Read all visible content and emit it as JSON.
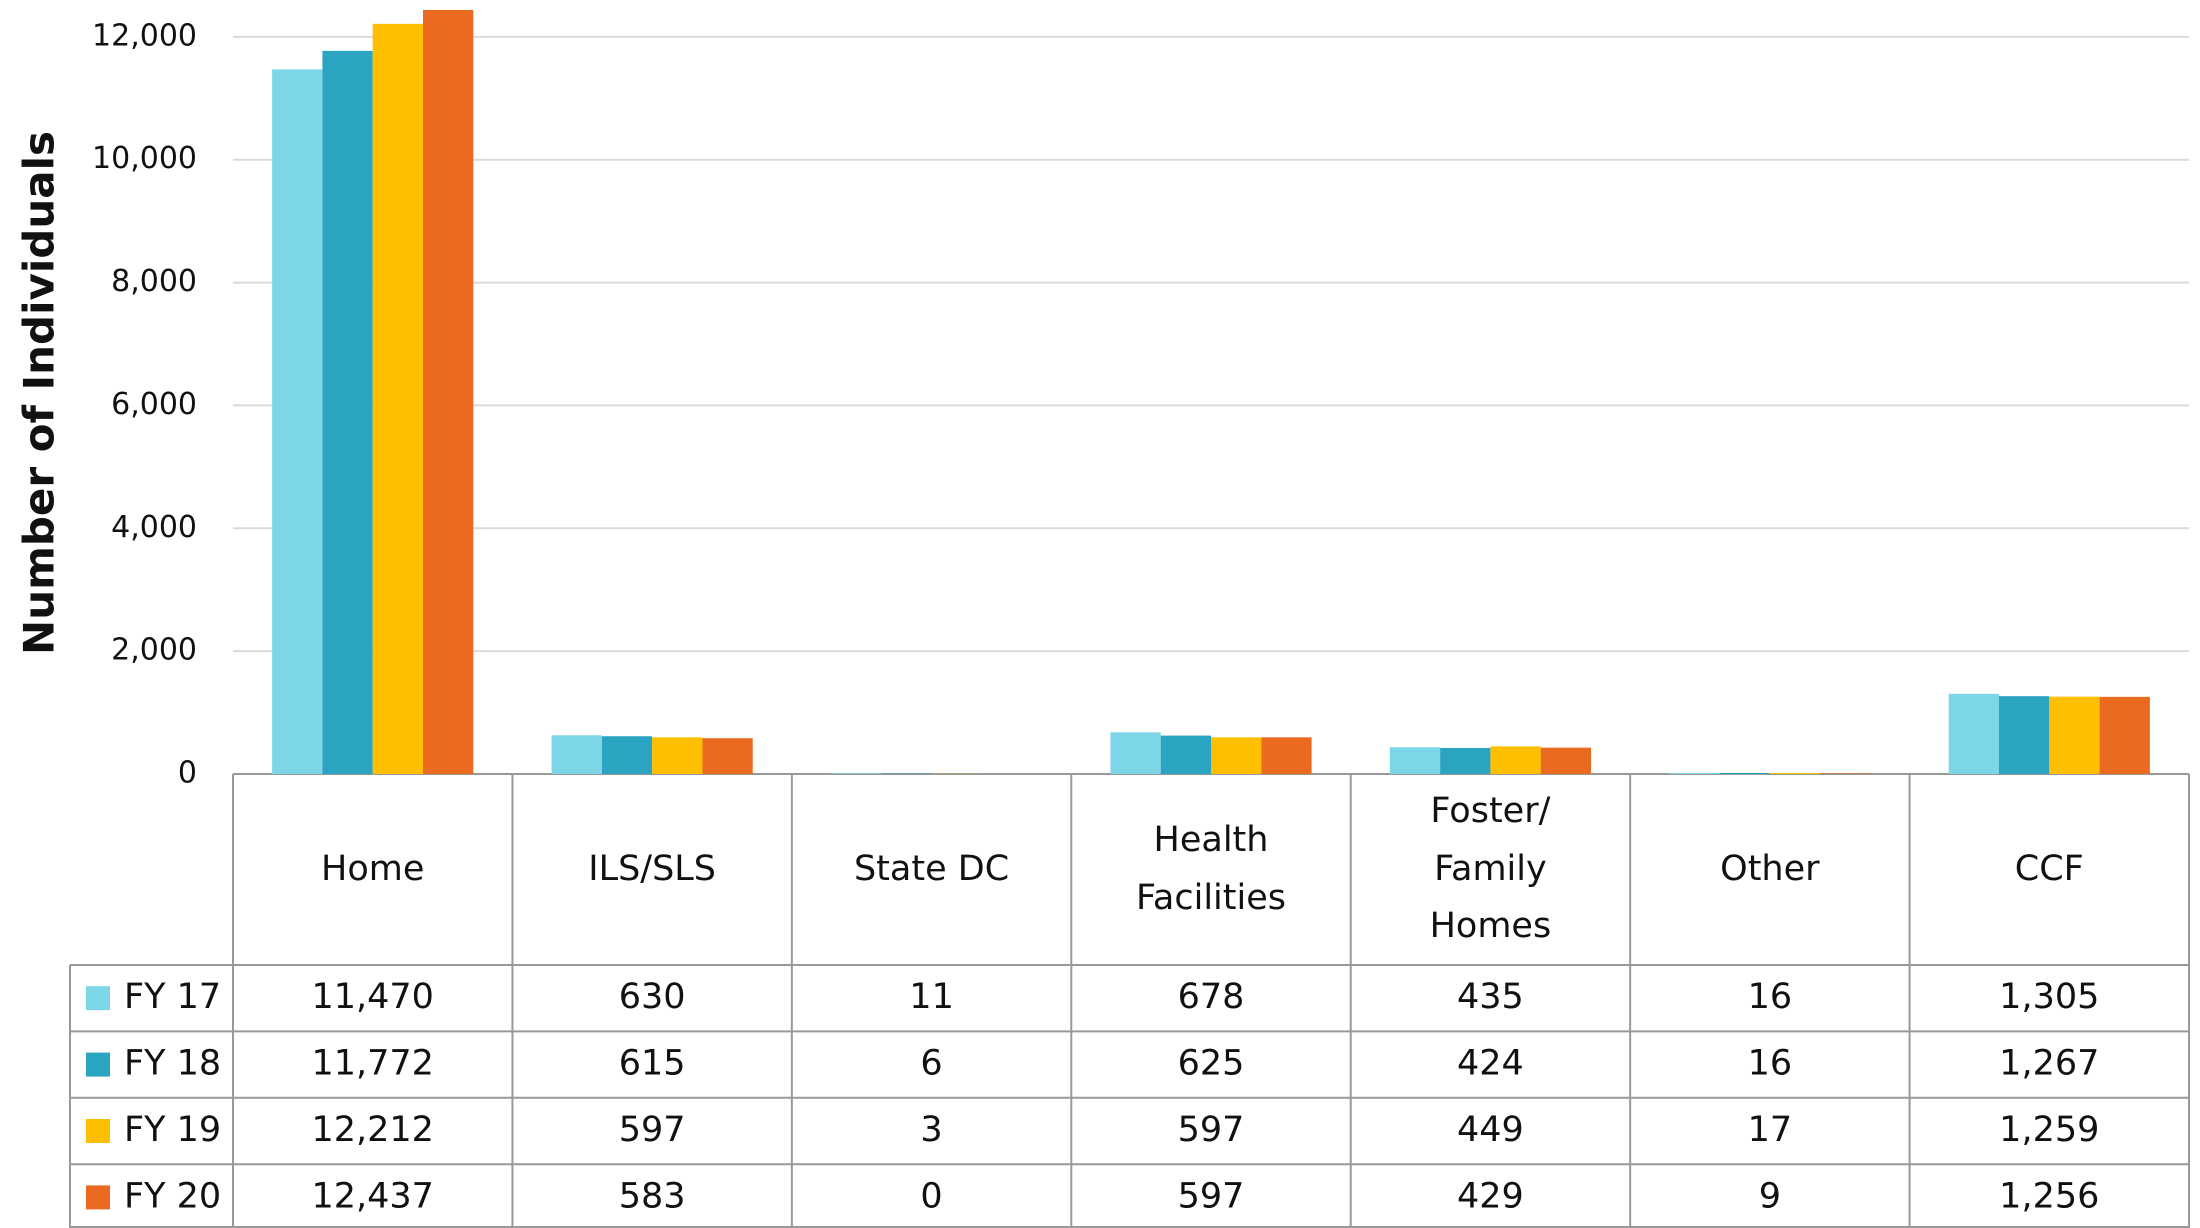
{
  "chart_data": {
    "type": "bar",
    "y_axis_label": "Number of Individuals",
    "categories": [
      "Home",
      "ILS/SLS",
      "State DC",
      "Health\nFacilities",
      "Foster/\nFamily\nHomes",
      "Other",
      "CCF"
    ],
    "series": [
      {
        "name": "FY 17",
        "color": "#7dd6e8",
        "values": [
          11470,
          630,
          11,
          678,
          435,
          16,
          1305
        ],
        "value_labels": [
          "11,470",
          "630",
          "11",
          "678",
          "435",
          "16",
          "1,305"
        ]
      },
      {
        "name": "FY 18",
        "color": "#2ba4c2",
        "values": [
          11772,
          615,
          6,
          625,
          424,
          16,
          1267
        ],
        "value_labels": [
          "11,772",
          "615",
          "6",
          "625",
          "424",
          "16",
          "1,267"
        ]
      },
      {
        "name": "FY 19",
        "color": "#fdbf00",
        "values": [
          12212,
          597,
          3,
          597,
          449,
          17,
          1259
        ],
        "value_labels": [
          "12,212",
          "597",
          "3",
          "597",
          "449",
          "17",
          "1,259"
        ]
      },
      {
        "name": "FY 20",
        "color": "#ea6a1f",
        "values": [
          12437,
          583,
          0,
          597,
          429,
          9,
          1256
        ],
        "value_labels": [
          "12,437",
          "583",
          "0",
          "597",
          "429",
          "9",
          "1,256"
        ]
      }
    ],
    "ylim": [
      0,
      12600
    ],
    "yticks": [
      0,
      {
        "value": 2000,
        "label": "2,000"
      },
      {
        "value": 4000,
        "label": "4,000"
      },
      {
        "value": 6000,
        "label": "6,000"
      },
      {
        "value": 8000,
        "label": "8,000"
      },
      {
        "value": 10000,
        "label": "10,000"
      },
      {
        "value": 12000,
        "label": "12,000"
      }
    ],
    "grid": true
  }
}
